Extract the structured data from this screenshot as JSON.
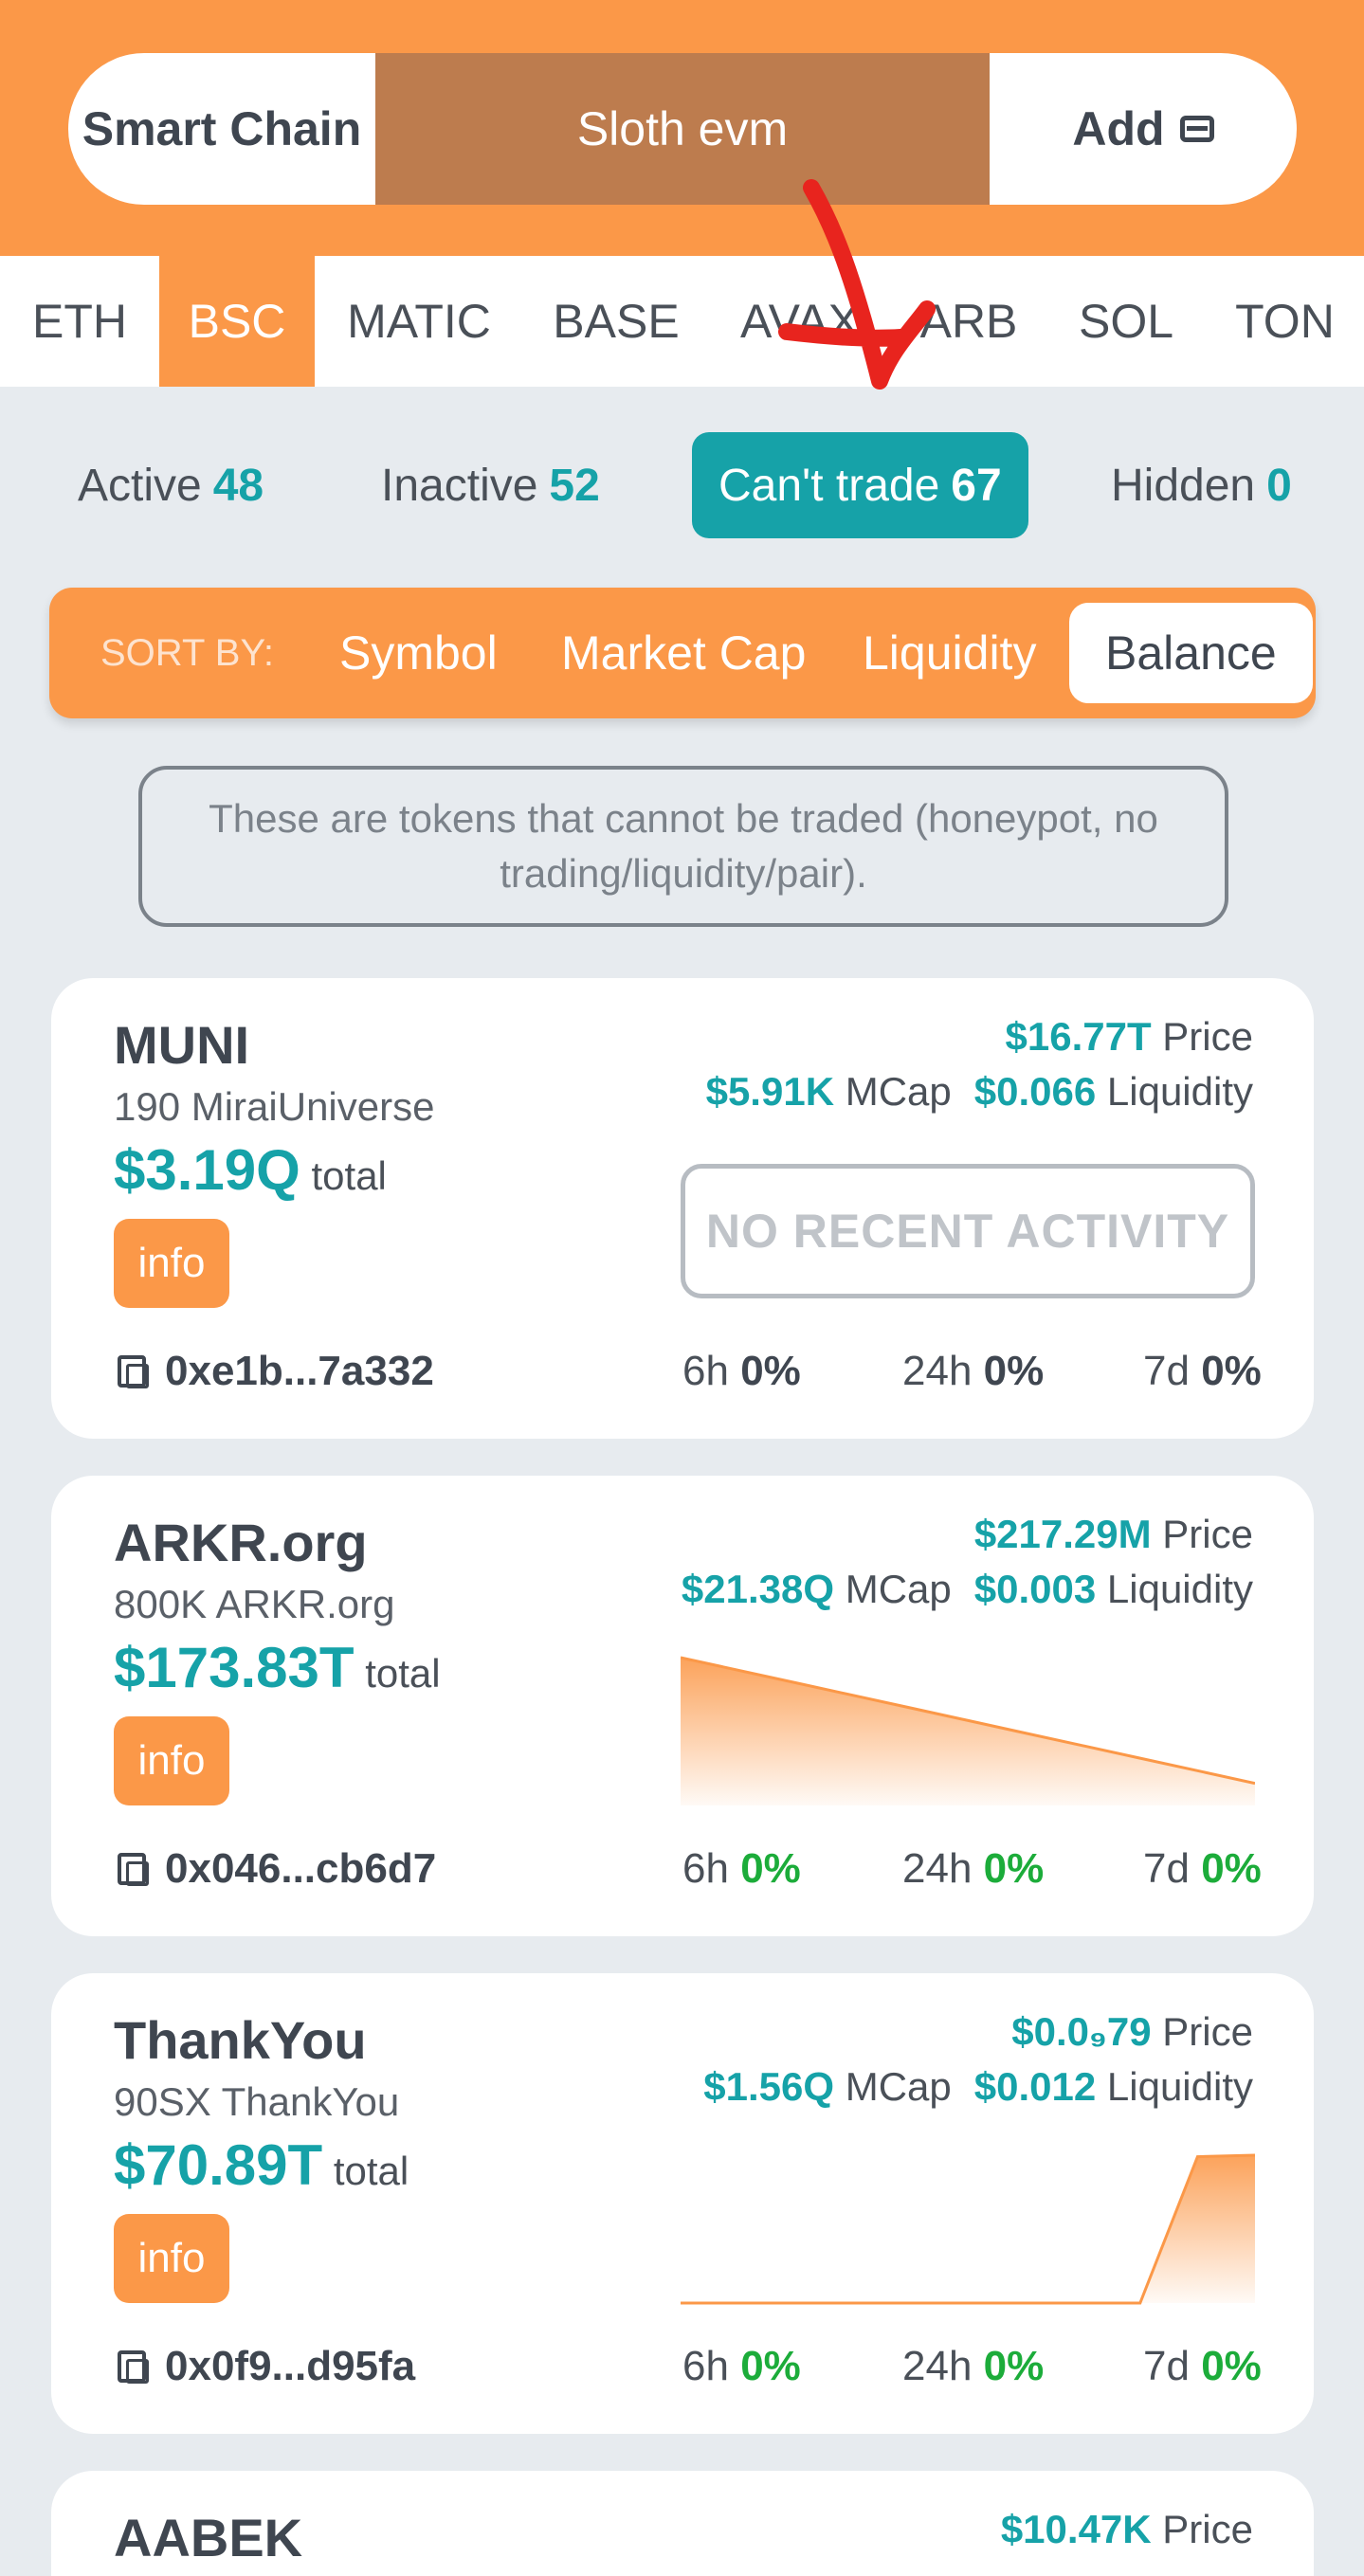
{
  "header": {
    "chain_label": "Smart Chain",
    "wallet_name": "Sloth evm",
    "add_label": "Add"
  },
  "networks": [
    "ETH",
    "BSC",
    "MATIC",
    "BASE",
    "AVAX",
    "ARB",
    "SOL",
    "TON"
  ],
  "active_network": "BSC",
  "filters": {
    "active": {
      "label": "Active",
      "count": "48"
    },
    "inactive": {
      "label": "Inactive",
      "count": "52"
    },
    "cant_trade": {
      "label": "Can't trade",
      "count": "67"
    },
    "hidden": {
      "label": "Hidden",
      "count": "0"
    }
  },
  "sort": {
    "label": "SORT BY:",
    "options": [
      "Symbol",
      "Market Cap",
      "Liquidity",
      "Balance"
    ],
    "selected": "Balance"
  },
  "notice": "These are tokens that cannot be traded (honeypot, no trading/liquidity/pair).",
  "labels": {
    "price": "Price",
    "mcap": "MCap",
    "liquidity": "Liquidity",
    "total": "total",
    "info": "info",
    "no_activity": "NO RECENT ACTIVITY",
    "h6": "6h",
    "h24": "24h",
    "d7": "7d"
  },
  "tokens": [
    {
      "symbol": "MUNI",
      "holding": "190 MiraiUniverse",
      "total": "$3.19Q",
      "price": "$16.77T",
      "mcap": "$5.91K",
      "liquidity": "$0.066",
      "address": "0xe1b...7a332",
      "change_6h": "0%",
      "change_24h": "0%",
      "change_7d": "0%"
    },
    {
      "symbol": "ARKR.org",
      "holding": "800K ARKR.org",
      "total": "$173.83T",
      "price": "$217.29M",
      "mcap": "$21.38Q",
      "liquidity": "$0.003",
      "address": "0x046...cb6d7",
      "change_6h": "0%",
      "change_24h": "0%",
      "change_7d": "0%",
      "sparkline": [
        1.0,
        0.83,
        0.66,
        0.49,
        0.32,
        0.15
      ]
    },
    {
      "symbol": "ThankYou",
      "holding": "90SX ThankYou",
      "total": "$70.89T",
      "price": "$0.0₉79",
      "mcap": "$1.56Q",
      "liquidity": "$0.012",
      "address": "0x0f9...d95fa",
      "change_6h": "0%",
      "change_24h": "0%",
      "change_7d": "0%",
      "sparkline": [
        0,
        0,
        0,
        0,
        0,
        0,
        0,
        0,
        0,
        0.99,
        1.0
      ]
    },
    {
      "symbol": "AABEK",
      "price": "$10.47K"
    }
  ],
  "colors": {
    "accent_orange": "#fb9848",
    "teal": "#16a2a8",
    "positive_green": "#1cac3a"
  }
}
